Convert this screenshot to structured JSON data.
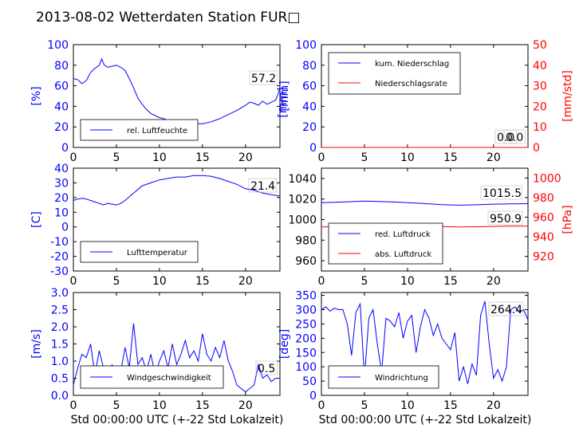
{
  "title": "2013-08-02 Wetterdaten Station FUR□",
  "colors": {
    "left": "#0000ff",
    "right": "#ff0000",
    "text": "#000000"
  },
  "chart_data": [
    {
      "id": "humidity",
      "type": "line",
      "ylabel_left": "[%]",
      "xlim": [
        0,
        24
      ],
      "ylim": [
        0,
        100
      ],
      "xticks": [
        0,
        5,
        10,
        15,
        20
      ],
      "yticks": [
        0,
        20,
        40,
        60,
        80,
        100
      ],
      "grid": false,
      "legend": "lower-center",
      "annotations": [
        "57.2"
      ],
      "series": [
        {
          "name": "rel. Luftfeuchte",
          "color": "#0000ff",
          "x": [
            0,
            0.5,
            1,
            1.5,
            2,
            2.5,
            3,
            3.3,
            3.6,
            4,
            4.5,
            5,
            5.5,
            6,
            6.5,
            7,
            7.5,
            8,
            8.5,
            9,
            9.5,
            10,
            10.5,
            11,
            12,
            13,
            14,
            15,
            16,
            17,
            18,
            19,
            20,
            20.5,
            21,
            21.5,
            22,
            22.5,
            23,
            23.5,
            24
          ],
          "y": [
            67,
            66,
            62,
            65,
            73,
            77,
            80,
            86,
            80,
            78,
            79,
            80,
            78,
            75,
            67,
            58,
            48,
            42,
            37,
            33,
            31,
            29,
            28,
            26,
            25,
            24,
            23,
            23,
            25,
            28,
            32,
            36,
            41,
            44,
            43,
            41,
            45,
            42,
            44,
            46,
            57
          ]
        }
      ]
    },
    {
      "id": "precipitation",
      "type": "line",
      "ylabel_left": "[mm]",
      "ylabel_right": "[mm/std]",
      "xlim": [
        0,
        24
      ],
      "ylim": [
        0,
        100
      ],
      "ylim_right": [
        0,
        50
      ],
      "xticks": [
        0,
        5,
        10,
        15,
        20
      ],
      "yticks": [
        0,
        20,
        40,
        60,
        80,
        100
      ],
      "yticks_right": [
        0,
        10,
        20,
        30,
        40,
        50
      ],
      "grid": false,
      "legend": "upper-left",
      "annotations": [
        "0.0",
        "0.0"
      ],
      "series": [
        {
          "name": "kum. Niederschlag",
          "color": "#0000ff",
          "axis": "left",
          "x": [
            0,
            24
          ],
          "y": [
            0,
            0
          ]
        },
        {
          "name": "Niederschlagsrate",
          "color": "#ff0000",
          "axis": "right",
          "x": [
            0,
            24
          ],
          "y": [
            0,
            0
          ]
        }
      ]
    },
    {
      "id": "temperature",
      "type": "line",
      "ylabel_left": "[C]",
      "xlim": [
        0,
        24
      ],
      "ylim": [
        -30,
        40
      ],
      "xticks": [
        0,
        5,
        10,
        15,
        20
      ],
      "yticks": [
        -30,
        -20,
        -10,
        0,
        10,
        20,
        30,
        40
      ],
      "grid": false,
      "legend": "lower-center",
      "annotations": [
        "21.4"
      ],
      "series": [
        {
          "name": "Lufttemperatur",
          "color": "#0000ff",
          "x": [
            0,
            0.5,
            1,
            1.5,
            2,
            2.5,
            3,
            3.5,
            4,
            4.5,
            5,
            5.5,
            6,
            7,
            8,
            9,
            10,
            11,
            12,
            13,
            14,
            15,
            16,
            17,
            18,
            19,
            20,
            21,
            22,
            23,
            24
          ],
          "y": [
            18,
            19,
            19.5,
            19,
            18,
            17,
            16,
            15,
            16,
            15.5,
            15,
            16,
            18,
            23,
            28,
            30,
            32,
            33,
            34,
            34,
            35,
            35,
            34.5,
            33,
            31,
            29,
            26,
            25,
            23,
            22,
            21
          ]
        }
      ]
    },
    {
      "id": "pressure",
      "type": "line",
      "ylabel_right": "[hPa]",
      "xlim": [
        0,
        24
      ],
      "ylim": [
        950,
        1050
      ],
      "ylim_right": [
        905,
        1010
      ],
      "xticks": [
        0,
        5,
        10,
        15,
        20
      ],
      "yticks": [
        960,
        980,
        1000,
        1020,
        1040
      ],
      "yticks_right": [
        920,
        940,
        960,
        980,
        1000
      ],
      "grid": false,
      "legend": "lower-left",
      "annotations": [
        "1015.5",
        "950.9"
      ],
      "series": [
        {
          "name": "red. Luftdruck",
          "color": "#0000ff",
          "axis": "left",
          "x": [
            0,
            2,
            5,
            8,
            10,
            12,
            14,
            16,
            18,
            20,
            22,
            24
          ],
          "y": [
            1016.5,
            1017,
            1018,
            1017.3,
            1016.5,
            1015.6,
            1014.6,
            1014,
            1014.4,
            1015,
            1015.3,
            1015.5
          ]
        },
        {
          "name": "abs. Luftdruck",
          "color": "#ff0000",
          "axis": "right",
          "x": [
            0,
            2,
            5,
            8,
            10,
            12,
            14,
            16,
            18,
            20,
            22,
            24
          ],
          "y": [
            950,
            950.4,
            951,
            951.5,
            951.3,
            950.8,
            950.3,
            949.9,
            950.2,
            950.5,
            950.8,
            950.9
          ]
        }
      ]
    },
    {
      "id": "wind-speed",
      "type": "line",
      "ylabel_left": "[m/s]",
      "xlim": [
        0,
        24
      ],
      "ylim": [
        0,
        3
      ],
      "xticks": [
        0,
        5,
        10,
        15,
        20
      ],
      "yticks": [
        0.0,
        0.5,
        1.0,
        1.5,
        2.0,
        2.5,
        3.0
      ],
      "grid": false,
      "legend": "lower-center",
      "annotations": [
        "0.5"
      ],
      "series": [
        {
          "name": "Windgeschwindigkeit",
          "color": "#0000ff",
          "x": [
            0,
            0.5,
            1,
            1.5,
            2,
            2.5,
            3,
            3.5,
            4,
            4.5,
            5,
            5.5,
            6,
            6.5,
            7,
            7.5,
            8,
            8.5,
            9,
            9.5,
            10,
            10.5,
            11,
            11.5,
            12,
            12.5,
            13,
            13.5,
            14,
            14.5,
            15,
            15.5,
            16,
            16.5,
            17,
            17.5,
            18,
            18.5,
            19,
            19.5,
            20,
            20.5,
            21,
            21.5,
            22,
            22.5,
            23,
            23.5,
            24
          ],
          "y": [
            0.3,
            0.8,
            1.2,
            1.1,
            1.5,
            0.6,
            1.3,
            0.8,
            0.4,
            0.9,
            0.2,
            0.7,
            1.4,
            0.8,
            2.1,
            0.9,
            1.1,
            0.7,
            1.2,
            0.6,
            1.0,
            1.3,
            0.8,
            1.5,
            0.9,
            1.2,
            1.6,
            1.1,
            1.3,
            1.0,
            1.8,
            1.2,
            1.0,
            1.4,
            1.1,
            1.6,
            1.0,
            0.7,
            0.3,
            0.2,
            0.1,
            0.2,
            0.3,
            0.9,
            0.5,
            0.6,
            0.4,
            0.5,
            0.5
          ]
        }
      ]
    },
    {
      "id": "wind-direction",
      "type": "line",
      "ylabel_left": "[deg]",
      "xlim": [
        0,
        24
      ],
      "ylim": [
        0,
        360
      ],
      "xticks": [
        0,
        5,
        10,
        15,
        20
      ],
      "yticks": [
        0,
        50,
        100,
        150,
        200,
        250,
        300,
        350
      ],
      "grid": false,
      "legend": "lower-left",
      "annotations": [
        "264.4"
      ],
      "series": [
        {
          "name": "Windrichtung",
          "color": "#0000ff",
          "x": [
            0,
            0.5,
            1,
            1.5,
            2,
            2.5,
            3,
            3.5,
            4,
            4.5,
            5,
            5.5,
            6,
            6.5,
            7,
            7.5,
            8,
            8.5,
            9,
            9.5,
            10,
            10.5,
            11,
            11.5,
            12,
            12.5,
            13,
            13.5,
            14,
            14.5,
            15,
            15.5,
            16,
            16.5,
            17,
            17.5,
            18,
            18.5,
            19,
            19.5,
            20,
            20.5,
            21,
            21.5,
            22,
            22.5,
            23,
            23.5,
            24
          ],
          "y": [
            300,
            310,
            295,
            305,
            300,
            300,
            250,
            140,
            290,
            320,
            60,
            270,
            300,
            180,
            80,
            270,
            260,
            240,
            290,
            200,
            260,
            280,
            150,
            240,
            300,
            270,
            210,
            250,
            200,
            180,
            160,
            220,
            50,
            100,
            40,
            110,
            70,
            280,
            330,
            180,
            60,
            90,
            50,
            100,
            300,
            310,
            290,
            300,
            264
          ]
        }
      ]
    }
  ],
  "xlabels": [
    "Std 00:00:00 UTC (+-22 Std Lokalzeit)",
    "Std 00:00:00 UTC (+-22 Std Lokalzeit)"
  ]
}
